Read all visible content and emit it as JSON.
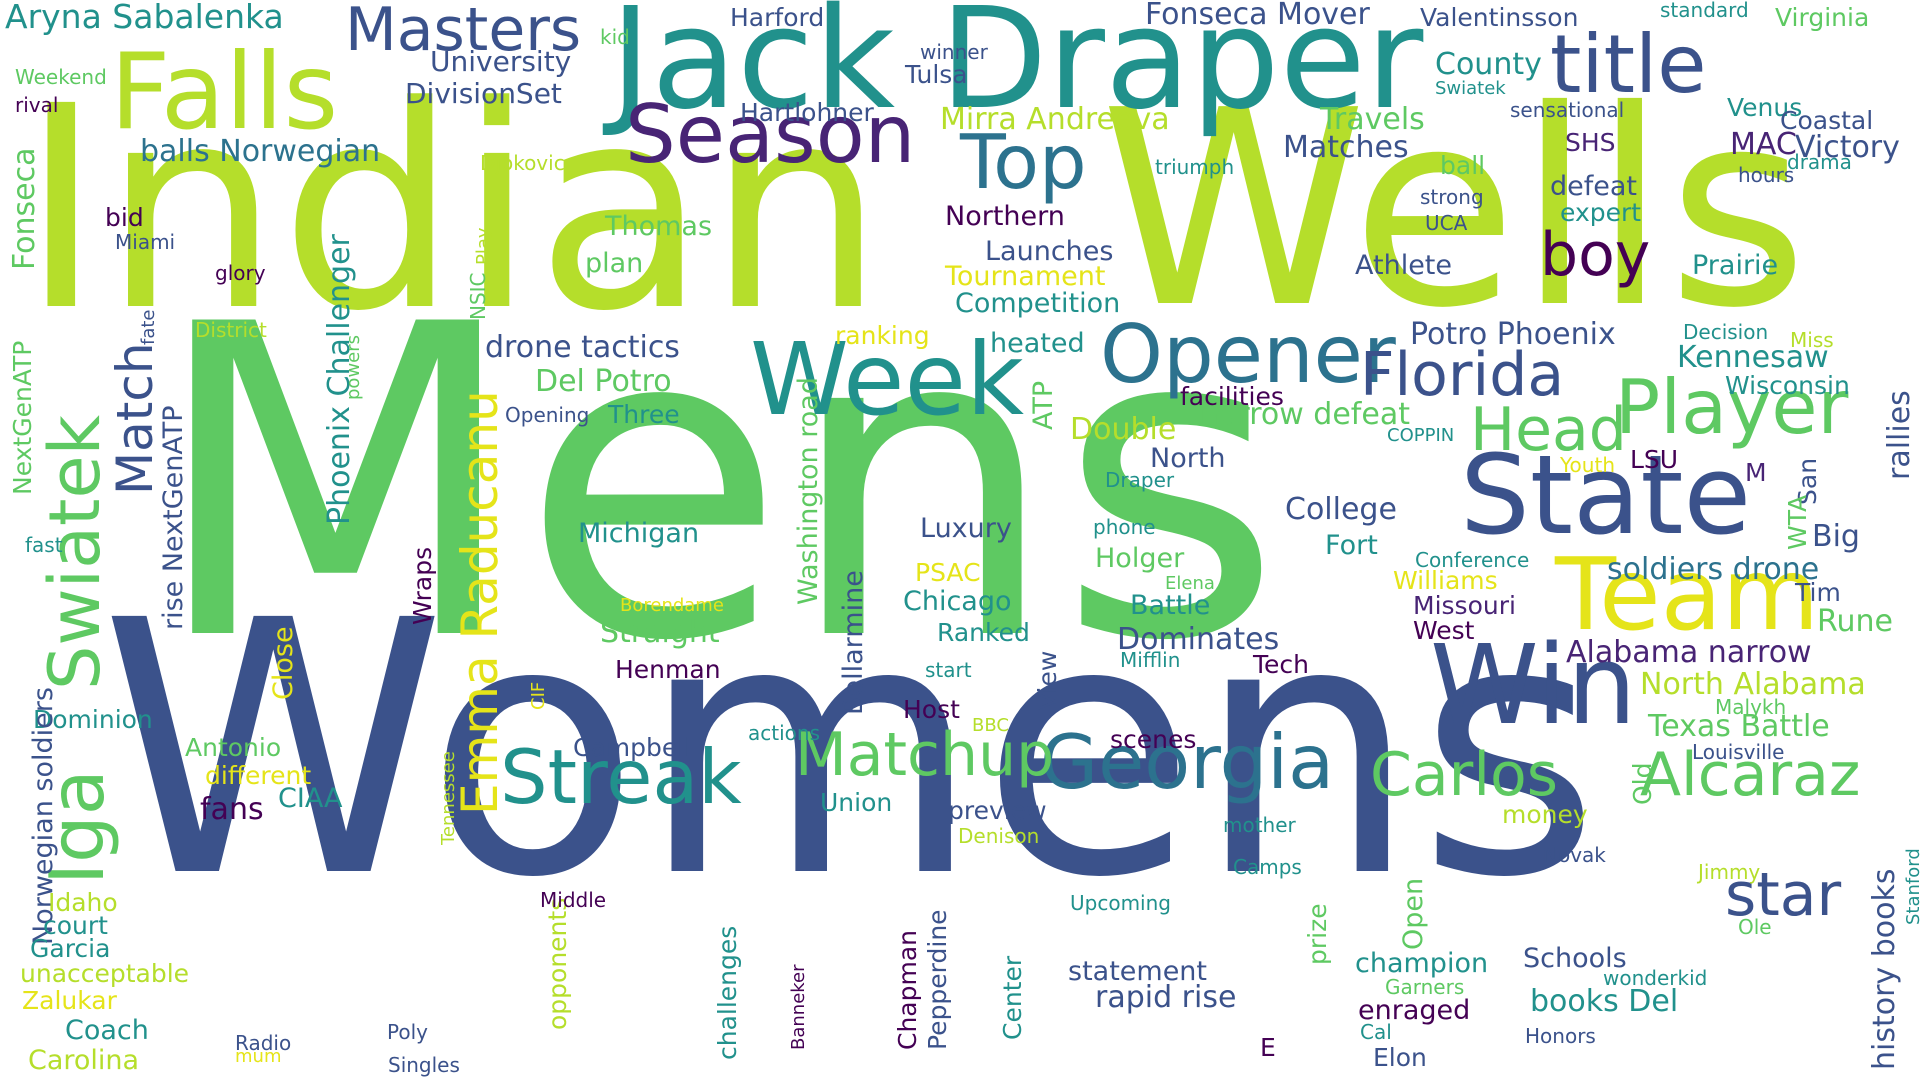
{
  "palette": {
    "indigo": "#3b518b",
    "deep_purple": "#482475",
    "dark_purple": "#440154",
    "slate_blue": "#2c728e",
    "teal": "#21918c",
    "sea_green": "#28ae80",
    "green": "#5ec962",
    "lime": "#addc30",
    "light_lime": "#c8e020",
    "yellow": "#e5e419",
    "navy": "#31688e",
    "violet": "#472c7a"
  },
  "words": [
    {
      "text": "Mens",
      "color": "#5ec962"
    },
    {
      "text": "Womens",
      "color": "#3b528b"
    },
    {
      "text": "Indian",
      "color": "#b5de2b"
    },
    {
      "text": "Wells",
      "color": "#b5de2b"
    },
    {
      "text": "Jack Draper",
      "color": "#21918c"
    },
    {
      "text": "Falls",
      "color": "#b5de2b"
    },
    {
      "text": "Masters",
      "color": "#3b528b"
    },
    {
      "text": "title",
      "color": "#3b528b"
    },
    {
      "text": "Season",
      "color": "#482475"
    },
    {
      "text": "Top",
      "color": "#2c728e"
    },
    {
      "text": "Week",
      "color": "#21918c"
    },
    {
      "text": "Opener",
      "color": "#2c728e"
    },
    {
      "text": "Florida",
      "color": "#3b528b"
    },
    {
      "text": "State",
      "color": "#3b528b"
    },
    {
      "text": "Player",
      "color": "#5ec962"
    },
    {
      "text": "Head",
      "color": "#5ec962"
    },
    {
      "text": "Team",
      "color": "#e5e419"
    },
    {
      "text": "Win",
      "color": "#3b528b"
    },
    {
      "text": "Georgia",
      "color": "#2c728e"
    },
    {
      "text": "Matchup",
      "color": "#5ec962"
    },
    {
      "text": "Streak",
      "color": "#21918c"
    },
    {
      "text": "Carlos",
      "color": "#5ec962"
    },
    {
      "text": "Alcaraz",
      "color": "#5ec962"
    },
    {
      "text": "star",
      "color": "#3b528b"
    },
    {
      "text": "boy",
      "color": "#440154"
    },
    {
      "text": "Swiatek",
      "color": "#5ec962"
    },
    {
      "text": "Iga",
      "color": "#5ec962"
    },
    {
      "text": "Emma Raducanu",
      "color": "#e5e419"
    },
    {
      "text": "Match",
      "color": "#3b528b"
    },
    {
      "text": "Aryna Sabalenka",
      "color": "#21918c"
    },
    {
      "text": "University",
      "color": "#3b528b"
    },
    {
      "text": "DivisionSet",
      "color": "#3b528b"
    },
    {
      "text": "kid",
      "color": "#5ec962"
    },
    {
      "text": "Harford",
      "color": "#3b528b"
    },
    {
      "text": "Fonseca Mover",
      "color": "#3b528b"
    },
    {
      "text": "Valentinsson",
      "color": "#3b528b"
    },
    {
      "text": "standard",
      "color": "#21918c"
    },
    {
      "text": "Virginia",
      "color": "#5ec962"
    },
    {
      "text": "winner",
      "color": "#3b528b"
    },
    {
      "text": "Tulsa",
      "color": "#3b528b"
    },
    {
      "text": "County",
      "color": "#21918c"
    },
    {
      "text": "Swiatek",
      "color": "#21918c"
    },
    {
      "text": "Weekend",
      "color": "#5ec962"
    },
    {
      "text": "rival",
      "color": "#440154"
    },
    {
      "text": "Hartlohner",
      "color": "#3b528b"
    },
    {
      "text": "Mirra Andreeva",
      "color": "#b5de2b"
    },
    {
      "text": "Travels",
      "color": "#5ec962"
    },
    {
      "text": "sensational",
      "color": "#3b528b"
    },
    {
      "text": "Venus",
      "color": "#21918c"
    },
    {
      "text": "Coastal",
      "color": "#3b528b"
    },
    {
      "text": "balls Norwegian",
      "color": "#2c728e"
    },
    {
      "text": "Djokovic",
      "color": "#b5de2b"
    },
    {
      "text": "triumph",
      "color": "#21918c"
    },
    {
      "text": "Matches",
      "color": "#3b528b"
    },
    {
      "text": "ball",
      "color": "#5ec962"
    },
    {
      "text": "SHS",
      "color": "#482475"
    },
    {
      "text": "MAC",
      "color": "#482475"
    },
    {
      "text": "Victory",
      "color": "#3b528b"
    },
    {
      "text": "drama",
      "color": "#21918c"
    },
    {
      "text": "hours",
      "color": "#3b528b"
    },
    {
      "text": "Bellarmine",
      "color": "#3b528b"
    },
    {
      "text": "bid",
      "color": "#440154"
    },
    {
      "text": "Miami",
      "color": "#3b528b"
    },
    {
      "text": "Fonseca",
      "color": "#5ec962"
    },
    {
      "text": "Thomas",
      "color": "#5ec962"
    },
    {
      "text": "Northern",
      "color": "#440154"
    },
    {
      "text": "strong",
      "color": "#3b528b"
    },
    {
      "text": "UCA",
      "color": "#3b528b"
    },
    {
      "text": "defeat",
      "color": "#3b528b"
    },
    {
      "text": "expert",
      "color": "#21918c"
    },
    {
      "text": "glory",
      "color": "#440154"
    },
    {
      "text": "plan",
      "color": "#5ec962"
    },
    {
      "text": "Launches",
      "color": "#3b528b"
    },
    {
      "text": "Tournament",
      "color": "#e5e419"
    },
    {
      "text": "Athlete",
      "color": "#3b528b"
    },
    {
      "text": "Prairie",
      "color": "#21918c"
    },
    {
      "text": "Competition",
      "color": "#21918c"
    },
    {
      "text": "NSIC",
      "color": "#5ec962"
    },
    {
      "text": "Play",
      "color": "#b5de2b"
    },
    {
      "text": "fate",
      "color": "#3b528b"
    },
    {
      "text": "District",
      "color": "#b5de2b"
    },
    {
      "text": "ranking",
      "color": "#e5e419"
    },
    {
      "text": "heated",
      "color": "#21918c"
    },
    {
      "text": "Potro Phoenix",
      "color": "#3b528b"
    },
    {
      "text": "Decision",
      "color": "#21918c"
    },
    {
      "text": "Miss",
      "color": "#b5de2b"
    },
    {
      "text": "Kennesaw",
      "color": "#21918c"
    },
    {
      "text": "NextGenATP",
      "color": "#5ec962"
    },
    {
      "text": "Phoenix Challenger",
      "color": "#21918c"
    },
    {
      "text": "powers",
      "color": "#5ec962"
    },
    {
      "text": "drone tactics",
      "color": "#3b528b"
    },
    {
      "text": "Del Potro",
      "color": "#5ec962"
    },
    {
      "text": "Three",
      "color": "#21918c"
    },
    {
      "text": "Opening",
      "color": "#3b528b"
    },
    {
      "text": "ATP",
      "color": "#5ec962"
    },
    {
      "text": "facilities",
      "color": "#440154"
    },
    {
      "text": "narrow defeat",
      "color": "#5ec962"
    },
    {
      "text": "Wisconsin",
      "color": "#21918c"
    },
    {
      "text": "rallies",
      "color": "#3b528b"
    },
    {
      "text": "Double",
      "color": "#b5de2b"
    },
    {
      "text": "COPPIN",
      "color": "#21918c"
    },
    {
      "text": "North",
      "color": "#3b528b"
    },
    {
      "text": "Draper",
      "color": "#21918c"
    },
    {
      "text": "Youth",
      "color": "#e5e419"
    },
    {
      "text": "LSU",
      "color": "#440154"
    },
    {
      "text": "M",
      "color": "#482475"
    },
    {
      "text": "San",
      "color": "#3b528b"
    },
    {
      "text": "rise NextGenATP",
      "color": "#3b528b"
    },
    {
      "text": "fast",
      "color": "#21918c"
    },
    {
      "text": "Michigan",
      "color": "#21918c"
    },
    {
      "text": "Washington road",
      "color": "#5ec962"
    },
    {
      "text": "Luxury",
      "color": "#3b528b"
    },
    {
      "text": "College",
      "color": "#3b528b"
    },
    {
      "text": "Fort",
      "color": "#21918c"
    },
    {
      "text": "phone",
      "color": "#21918c"
    },
    {
      "text": "Holger",
      "color": "#5ec962"
    },
    {
      "text": "Conference",
      "color": "#21918c"
    },
    {
      "text": "WTA",
      "color": "#5ec962"
    },
    {
      "text": "Big",
      "color": "#3b528b"
    },
    {
      "text": "soldiers drone",
      "color": "#2c728e"
    },
    {
      "text": "Tim",
      "color": "#3b528b"
    },
    {
      "text": "PSAC",
      "color": "#e5e419"
    },
    {
      "text": "Elena",
      "color": "#5ec962"
    },
    {
      "text": "Williams",
      "color": "#e5e419"
    },
    {
      "text": "Missouri",
      "color": "#482475"
    },
    {
      "text": "Rune",
      "color": "#5ec962"
    },
    {
      "text": "Chicago",
      "color": "#21918c"
    },
    {
      "text": "Battle",
      "color": "#21918c"
    },
    {
      "text": "West",
      "color": "#440154"
    },
    {
      "text": "Borendame",
      "color": "#e5e419"
    },
    {
      "text": "Wraps",
      "color": "#440154"
    },
    {
      "text": "Ranked",
      "color": "#21918c"
    },
    {
      "text": "Dominates",
      "color": "#3b528b"
    },
    {
      "text": "Alabama narrow",
      "color": "#482475"
    },
    {
      "text": "Close",
      "color": "#e5e419"
    },
    {
      "text": "Straight",
      "color": "#5ec962"
    },
    {
      "text": "Mifflin",
      "color": "#21918c"
    },
    {
      "text": "Tech",
      "color": "#440154"
    },
    {
      "text": "Bellarmine",
      "color": "#3b528b"
    },
    {
      "text": "View",
      "color": "#3b528b"
    },
    {
      "text": "North Alabama",
      "color": "#b5de2b"
    },
    {
      "text": "start",
      "color": "#21918c"
    },
    {
      "text": "Henman",
      "color": "#440154"
    },
    {
      "text": "CIF",
      "color": "#e5e419"
    },
    {
      "text": "Host",
      "color": "#440154"
    },
    {
      "text": "Malykh",
      "color": "#5ec962"
    },
    {
      "text": "Texas Battle",
      "color": "#5ec962"
    },
    {
      "text": "BBC",
      "color": "#b5de2b"
    },
    {
      "text": "Dominion",
      "color": "#21918c"
    },
    {
      "text": "Norwegian soldiers",
      "color": "#3b528b"
    },
    {
      "text": "Antonio",
      "color": "#5ec962"
    },
    {
      "text": "Campbell",
      "color": "#3b528b"
    },
    {
      "text": "actions",
      "color": "#21918c"
    },
    {
      "text": "scenes",
      "color": "#440154"
    },
    {
      "text": "Louisville",
      "color": "#3b528b"
    },
    {
      "text": "different",
      "color": "#e5e419"
    },
    {
      "text": "Tennessee",
      "color": "#b5de2b"
    },
    {
      "text": "Old",
      "color": "#5ec962"
    },
    {
      "text": "fans",
      "color": "#440154"
    },
    {
      "text": "CIAA",
      "color": "#21918c"
    },
    {
      "text": "Union",
      "color": "#21918c"
    },
    {
      "text": "preview",
      "color": "#3b528b"
    },
    {
      "text": "money",
      "color": "#b5de2b"
    },
    {
      "text": "Denison",
      "color": "#b5de2b"
    },
    {
      "text": "mother",
      "color": "#21918c"
    },
    {
      "text": "history books",
      "color": "#3b528b"
    },
    {
      "text": "Stanford",
      "color": "#21918c"
    },
    {
      "text": "Novak",
      "color": "#3b528b"
    },
    {
      "text": "Camps",
      "color": "#21918c"
    },
    {
      "text": "Jimmy",
      "color": "#b5de2b"
    },
    {
      "text": "Idaho",
      "color": "#b5de2b"
    },
    {
      "text": "court",
      "color": "#21918c"
    },
    {
      "text": "opponents",
      "color": "#b5de2b"
    },
    {
      "text": "Middle",
      "color": "#440154"
    },
    {
      "text": "Upcoming",
      "color": "#21918c"
    },
    {
      "text": "prize",
      "color": "#5ec962"
    },
    {
      "text": "Open",
      "color": "#5ec962"
    },
    {
      "text": "Ole",
      "color": "#5ec962"
    },
    {
      "text": "Garcia",
      "color": "#21918c"
    },
    {
      "text": "challenges",
      "color": "#21918c"
    },
    {
      "text": "Banneker",
      "color": "#440154"
    },
    {
      "text": "Chapman",
      "color": "#440154"
    },
    {
      "text": "champion",
      "color": "#21918c"
    },
    {
      "text": "Schools",
      "color": "#3b528b"
    },
    {
      "text": "unacceptable",
      "color": "#b5de2b"
    },
    {
      "text": "Pepperdine",
      "color": "#3b528b"
    },
    {
      "text": "Center",
      "color": "#21918c"
    },
    {
      "text": "statement",
      "color": "#3b528b"
    },
    {
      "text": "wonderkid",
      "color": "#21918c"
    },
    {
      "text": "Zalukar",
      "color": "#e5e419"
    },
    {
      "text": "Garners",
      "color": "#5ec962"
    },
    {
      "text": "books Del",
      "color": "#21918c"
    },
    {
      "text": "rapid rise",
      "color": "#3b528b"
    },
    {
      "text": "Coach",
      "color": "#21918c"
    },
    {
      "text": "enraged",
      "color": "#440154"
    },
    {
      "text": "Radio",
      "color": "#3b528b"
    },
    {
      "text": "Poly",
      "color": "#3b528b"
    },
    {
      "text": "Cal",
      "color": "#21918c"
    },
    {
      "text": "Carolina",
      "color": "#b5de2b"
    },
    {
      "text": "mum",
      "color": "#e5e419"
    },
    {
      "text": "Singles",
      "color": "#3b528b"
    },
    {
      "text": "E",
      "color": "#440154"
    },
    {
      "text": "Elon",
      "color": "#3b528b"
    },
    {
      "text": "Honors",
      "color": "#3b528b"
    }
  ]
}
